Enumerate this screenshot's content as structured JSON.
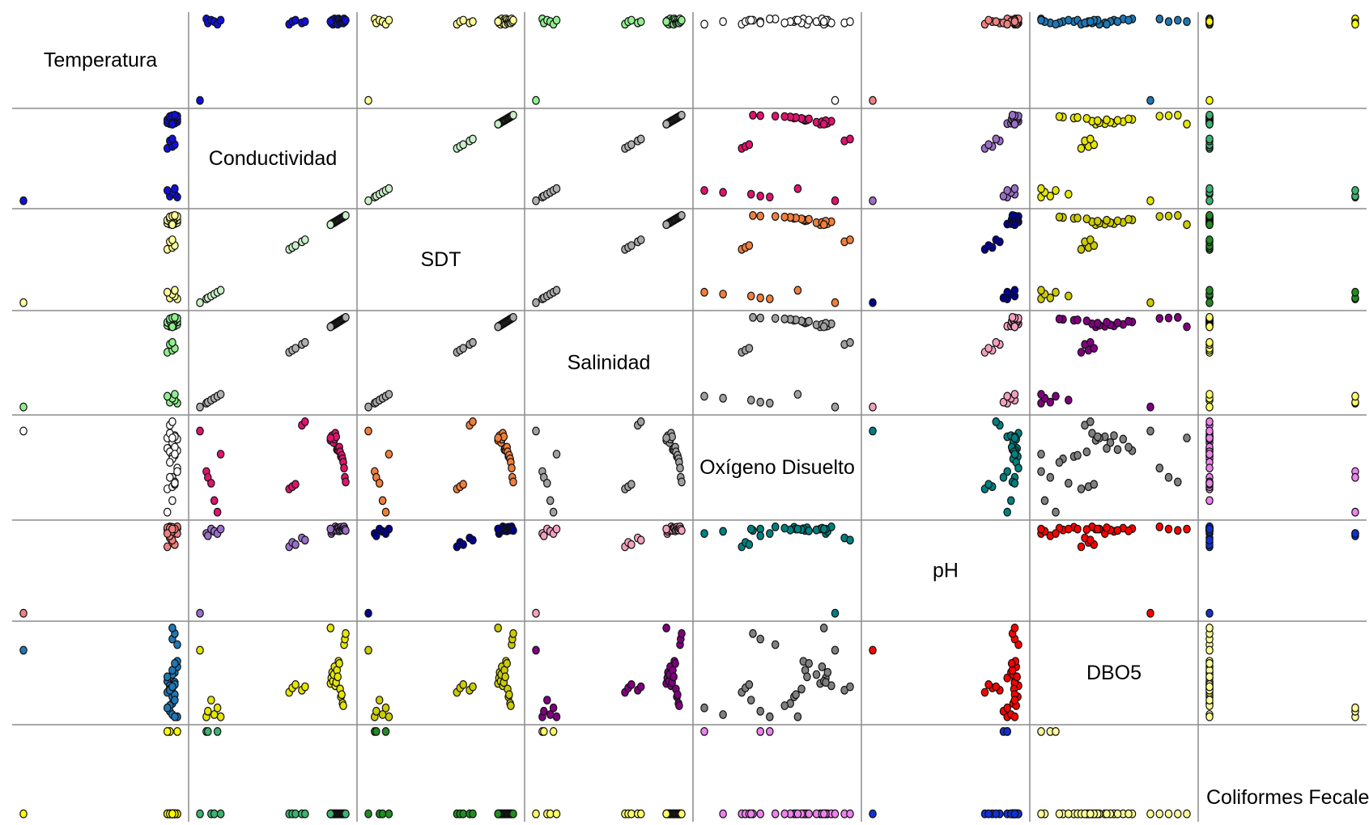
{
  "chart_data": {
    "type": "scatter",
    "variables": [
      "Temperatura",
      "Conductividad",
      "SDT",
      "Salinidad",
      "Oxígeno Disuelto",
      "pH",
      "DBO5",
      "Coliformes Fecales"
    ],
    "grid": true,
    "samples": {
      "Temperatura": [
        26.0,
        25.9,
        26.1,
        25.8,
        26.0,
        26.2,
        25.9,
        26.1,
        26.0,
        25.8,
        26.2,
        26.1,
        25.9,
        26.0,
        26.1,
        26.0,
        25.9,
        26.2,
        26.0,
        26.1,
        25.8,
        26.0,
        26.1,
        25.9,
        26.0,
        26.2,
        25.9,
        26.1,
        26.0,
        25.8,
        26.1,
        26.0,
        20.0
      ],
      "Conductividad": [
        880,
        885,
        890,
        895,
        900,
        905,
        910,
        915,
        920,
        925,
        930,
        935,
        940,
        945,
        950,
        955,
        960,
        965,
        970,
        975,
        620,
        640,
        660,
        700,
        720,
        100,
        110,
        130,
        150,
        170,
        190,
        880,
        60
      ],
      "SDT": [
        440,
        443,
        445,
        448,
        450,
        452,
        455,
        458,
        460,
        463,
        465,
        468,
        470,
        473,
        475,
        478,
        480,
        483,
        485,
        488,
        310,
        320,
        330,
        350,
        360,
        50,
        55,
        65,
        75,
        85,
        95,
        440,
        30
      ],
      "Salinidad": [
        0.44,
        0.443,
        0.445,
        0.448,
        0.45,
        0.452,
        0.455,
        0.458,
        0.46,
        0.463,
        0.465,
        0.468,
        0.47,
        0.473,
        0.475,
        0.478,
        0.48,
        0.483,
        0.485,
        0.488,
        0.31,
        0.32,
        0.33,
        0.35,
        0.36,
        0.05,
        0.055,
        0.065,
        0.075,
        0.085,
        0.095,
        0.44,
        0.03
      ],
      "Oxígeno Disuelto": [
        7.2,
        7.5,
        7.6,
        7.4,
        7.0,
        7.3,
        7.8,
        7.5,
        6.4,
        6.5,
        6.3,
        6.6,
        6.2,
        5.8,
        5.9,
        5.6,
        5.3,
        4.8,
        4.0,
        3.6,
        3.0,
        3.2,
        3.4,
        8.5,
        8.8,
        4.5,
        4.0,
        3.5,
        2.0,
        1.0,
        6.0,
        7.4,
        8.0
      ],
      "pH": [
        7.9,
        7.8,
        7.85,
        7.9,
        7.88,
        7.92,
        7.95,
        7.9,
        7.87,
        7.93,
        7.91,
        7.86,
        7.89,
        7.94,
        7.9,
        7.88,
        7.92,
        7.95,
        7.9,
        7.87,
        7.5,
        7.6,
        7.55,
        7.7,
        7.65,
        7.8,
        7.75,
        7.9,
        7.85,
        7.8,
        7.9,
        7.9,
        6.0
      ],
      "DBO5": [
        5.0,
        5.5,
        6.0,
        5.2,
        5.8,
        6.5,
        4.8,
        5.1,
        6.2,
        5.6,
        7.0,
        6.8,
        4.5,
        3.8,
        4.0,
        3.2,
        3.0,
        8.5,
        9.0,
        9.5,
        4.2,
        4.6,
        4.9,
        4.4,
        4.7,
        2.0,
        2.5,
        3.5,
        2.2,
        2.8,
        2.0,
        10.0,
        8.0
      ],
      "Coliformes Fecales": [
        1,
        1,
        1,
        1,
        1,
        1,
        1,
        1,
        1,
        1,
        1,
        1,
        1,
        1,
        1,
        1,
        1,
        1,
        1,
        1,
        1,
        1,
        1,
        1,
        1,
        9,
        9,
        1,
        1,
        9,
        1,
        1,
        1
      ]
    }
  },
  "series_colors": [
    [
      "#ffffff",
      "#1010d8",
      "#ffff99",
      "#90ee90",
      "#ffffff",
      "#f08080",
      "#1f77b4",
      "#ffff00"
    ],
    [
      "#1010d8",
      "#ffffff",
      "#c8f0c8",
      "#b0b0b0",
      "#e0136f",
      "#9b6fc8",
      "#e6e600",
      "#3cb371"
    ],
    [
      "#ffff99",
      "#c8f0c8",
      "#ffffff",
      "#a9a9a9",
      "#f07f3c",
      "#00008b",
      "#cccc00",
      "#228b22"
    ],
    [
      "#90ee90",
      "#b0b0b0",
      "#a9a9a9",
      "#ffffff",
      "#a0a0a0",
      "#f4a0c0",
      "#800080",
      "#ffff66"
    ],
    [
      "#ffffff",
      "#e0136f",
      "#f07f3c",
      "#a0a0a0",
      "#ffffff",
      "#008080",
      "#808080",
      "#ee82ee"
    ],
    [
      "#f08080",
      "#9b6fc8",
      "#00008b",
      "#f4a0c0",
      "#008080",
      "#ffffff",
      "#ff0000",
      "#1030d0"
    ],
    [
      "#1f77b4",
      "#e6e600",
      "#cccc00",
      "#800080",
      "#808080",
      "#ff0000",
      "#ffffff",
      "#ffff99"
    ],
    [
      "#ffff00",
      "#3cb371",
      "#228b22",
      "#ffff66",
      "#ee82ee",
      "#1030d0",
      "#ffff99",
      "#ffffff"
    ]
  ]
}
